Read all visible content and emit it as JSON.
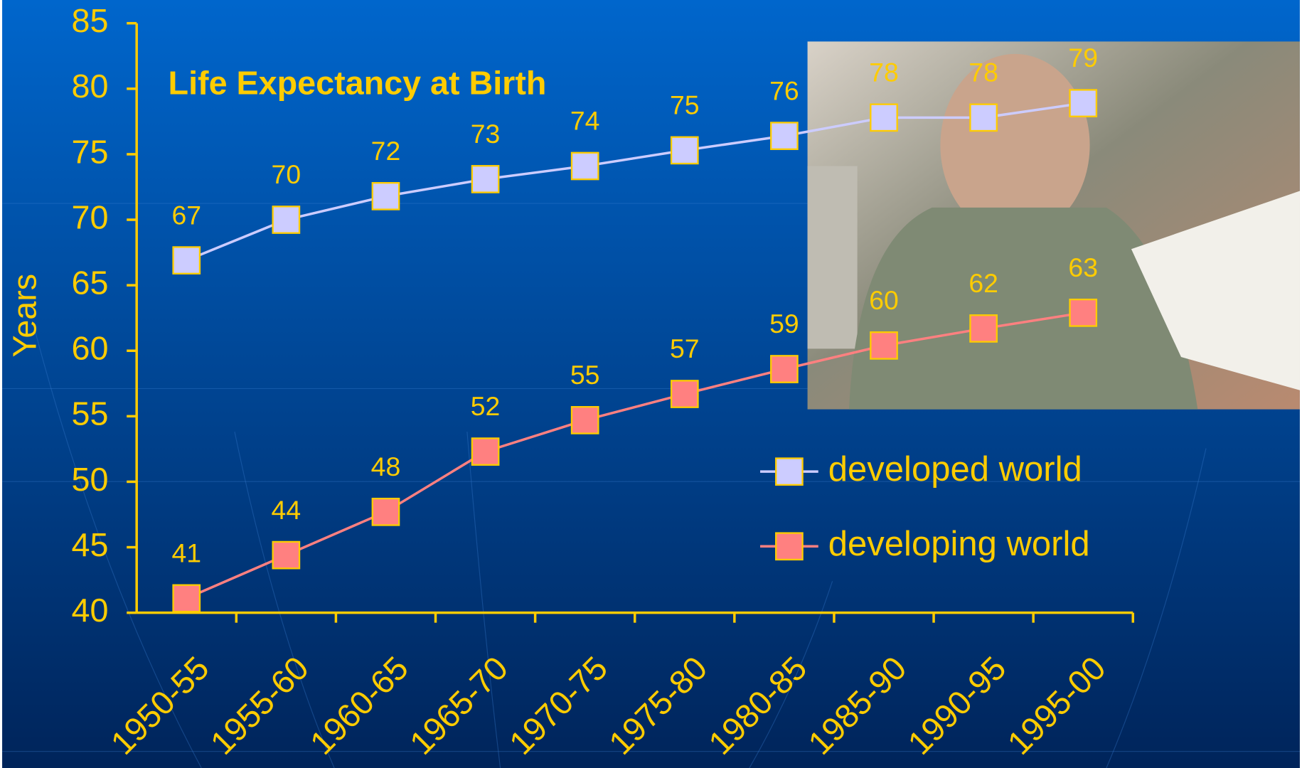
{
  "chart_data": {
    "type": "line",
    "title": "Life Expectancy at Birth",
    "y_label": "Years",
    "categories": [
      "1950-55",
      "1955-60",
      "1960-65",
      "1965-70",
      "1970-75",
      "1975-80",
      "1980-85",
      "1985-90",
      "1990-95",
      "1995-00"
    ],
    "series": [
      {
        "name": "developed world",
        "color": "#ccccff",
        "values": [
          66.9,
          70.0,
          71.8,
          73.1,
          74.1,
          75.3,
          76.4,
          77.8,
          77.8,
          78.9
        ],
        "value_labels": [
          "67",
          "70",
          "72",
          "73",
          "74",
          "75",
          "76",
          "78",
          "78",
          "79"
        ]
      },
      {
        "name": "developing world",
        "color": "#ff8080",
        "values": [
          41.1,
          44.4,
          47.7,
          52.3,
          54.7,
          56.7,
          58.6,
          60.4,
          61.7,
          62.9
        ],
        "value_labels": [
          "41",
          "44",
          "48",
          "52",
          "55",
          "57",
          "59",
          "60",
          "62",
          "63"
        ]
      }
    ],
    "ylim": [
      40,
      85
    ],
    "yticks": [
      40,
      45,
      50,
      55,
      60,
      65,
      70,
      75,
      80,
      85
    ],
    "grid": false,
    "text_color": "#ffcc00"
  }
}
